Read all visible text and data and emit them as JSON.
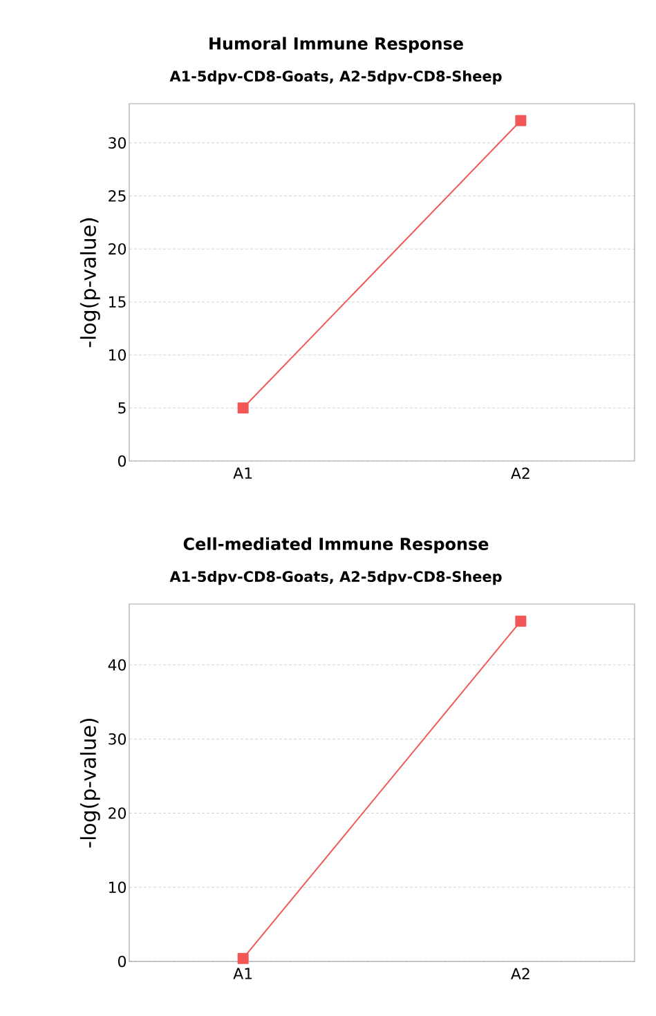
{
  "chart_data": [
    {
      "type": "line",
      "title": "Humoral Immune Response",
      "subtitle": "A1-5dpv-CD8-Goats, A2-5dpv-CD8-Sheep",
      "ylabel": "-log(p-value)",
      "categories": [
        "A1",
        "A2"
      ],
      "values": [
        5.0,
        32.1
      ],
      "color": "#f25757",
      "marker": "square",
      "ylim": [
        0,
        33.7
      ],
      "yticks": [
        0,
        5,
        10,
        15,
        20,
        25,
        30
      ],
      "grid": "y"
    },
    {
      "type": "line",
      "title": "Cell-mediated Immune Response",
      "subtitle": "A1-5dpv-CD8-Goats, A2-5dpv-CD8-Sheep",
      "ylabel": "-log(p-value)",
      "categories": [
        "A1",
        "A2"
      ],
      "values": [
        0.4,
        45.9
      ],
      "color": "#f25757",
      "marker": "square",
      "ylim": [
        0,
        48.2
      ],
      "yticks": [
        0,
        10,
        20,
        30,
        40
      ],
      "grid": "y"
    }
  ]
}
